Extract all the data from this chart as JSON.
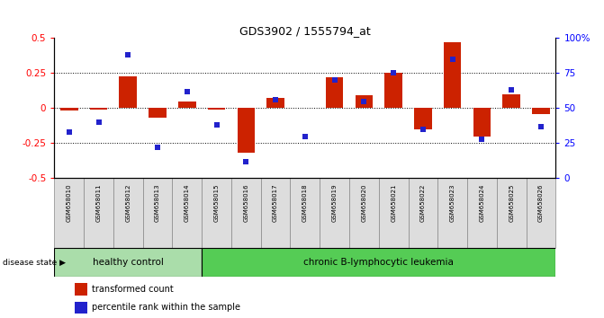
{
  "title": "GDS3902 / 1555794_at",
  "samples": [
    "GSM658010",
    "GSM658011",
    "GSM658012",
    "GSM658013",
    "GSM658014",
    "GSM658015",
    "GSM658016",
    "GSM658017",
    "GSM658018",
    "GSM658019",
    "GSM658020",
    "GSM658021",
    "GSM658022",
    "GSM658023",
    "GSM658024",
    "GSM658025",
    "GSM658026"
  ],
  "red_bars": [
    -0.02,
    -0.01,
    0.23,
    -0.07,
    0.05,
    -0.01,
    -0.32,
    0.07,
    0.0,
    0.22,
    0.09,
    0.25,
    -0.15,
    0.47,
    -0.2,
    0.1,
    -0.04
  ],
  "blue_squares": [
    33,
    40,
    88,
    22,
    62,
    38,
    12,
    56,
    30,
    70,
    55,
    75,
    35,
    85,
    28,
    63,
    37
  ],
  "healthy_control_count": 5,
  "ylim_left": [
    -0.5,
    0.5
  ],
  "ylim_right": [
    0,
    100
  ],
  "yticks_left": [
    -0.5,
    -0.25,
    0,
    0.25,
    0.5
  ],
  "ytick_labels_left": [
    "-0.5",
    "-0.25",
    "0",
    "0.25",
    "0.5"
  ],
  "yticks_right": [
    0,
    25,
    50,
    75,
    100
  ],
  "ytick_labels_right": [
    "0",
    "25",
    "50",
    "75",
    "100%"
  ],
  "grid_values": [
    -0.25,
    0,
    0.25
  ],
  "bar_color": "#cc2200",
  "dot_color": "#2222cc",
  "healthy_bg": "#aaddaa",
  "leukemia_bg": "#55cc55",
  "sample_box_bg": "#dddddd",
  "disease_state_label": "disease state",
  "healthy_label": "healthy control",
  "leukemia_label": "chronic B-lymphocytic leukemia",
  "legend_red": "transformed count",
  "legend_blue": "percentile rank within the sample"
}
